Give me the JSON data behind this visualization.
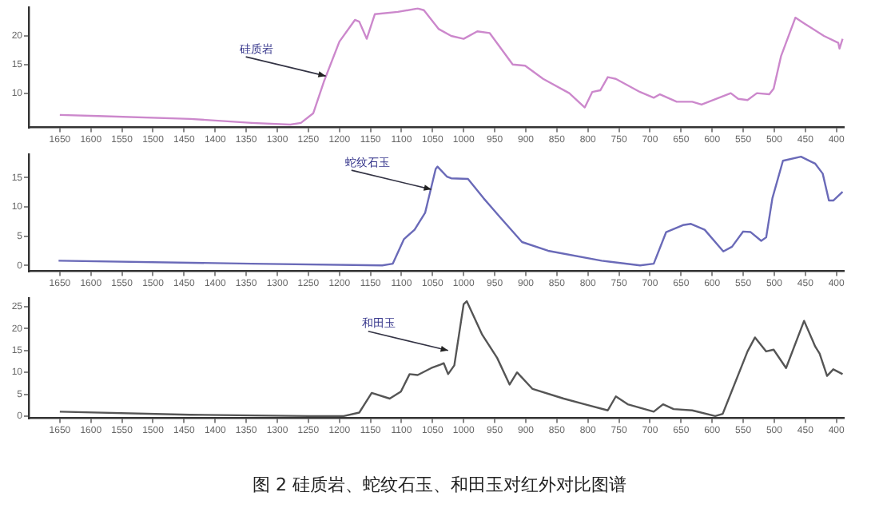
{
  "chart_data": [
    {
      "type": "line",
      "xlim": [
        1700,
        388
      ],
      "xticks": [
        1650,
        1600,
        1550,
        1500,
        1450,
        1400,
        1350,
        1300,
        1250,
        1200,
        1150,
        1100,
        1050,
        1000,
        950,
        900,
        850,
        800,
        750,
        700,
        650,
        600,
        550,
        500,
        450,
        400
      ],
      "ylim": [
        4,
        25
      ],
      "yticks": [
        10,
        15,
        20
      ],
      "grid": false,
      "legend": false,
      "marker": "none",
      "x": [
        1650,
        1588,
        1440,
        1341,
        1279,
        1262,
        1242,
        1225,
        1200,
        1175,
        1168,
        1156,
        1143,
        1106,
        1074,
        1064,
        1040,
        1020,
        1000,
        978,
        958,
        921,
        901,
        872,
        830,
        805,
        793,
        780,
        768,
        755,
        716,
        694,
        684,
        657,
        632,
        617,
        570,
        558,
        543,
        528,
        508,
        501,
        489,
        466,
        452,
        420,
        397,
        395,
        390
      ],
      "series": [
        {
          "color": "#cc88cc",
          "values": [
            6.2,
            6.0,
            5.5,
            4.8,
            4.5,
            4.8,
            6.5,
            12,
            19,
            22.8,
            22.5,
            19.5,
            23.8,
            24.2,
            24.8,
            24.5,
            21.2,
            20,
            19.5,
            20.8,
            20.5,
            15,
            14.8,
            12.5,
            10,
            7.5,
            10.2,
            10.5,
            12.8,
            12.5,
            10.2,
            9.2,
            9.8,
            8.5,
            8.5,
            8,
            10,
            9,
            8.8,
            10,
            9.8,
            10.8,
            16.5,
            23.2,
            22.2,
            20,
            18.8,
            17.8,
            19.5
          ]
        }
      ],
      "annotations": [
        {
          "text": "硅质岩",
          "x": 1222,
          "y": 13
        }
      ]
    },
    {
      "type": "line",
      "xlim": [
        1700,
        388
      ],
      "xticks": [
        1650,
        1600,
        1550,
        1500,
        1450,
        1400,
        1350,
        1300,
        1250,
        1200,
        1150,
        1100,
        1050,
        1000,
        950,
        900,
        850,
        800,
        750,
        700,
        650,
        600,
        550,
        500,
        450,
        400
      ],
      "ylim": [
        -1,
        19
      ],
      "yticks": [
        0,
        5,
        10,
        15
      ],
      "grid": false,
      "legend": false,
      "marker": "none",
      "x": [
        1652,
        1341,
        1131,
        1114,
        1096,
        1079,
        1062,
        1045,
        1042,
        1027,
        1020,
        993,
        968,
        941,
        906,
        864,
        778,
        716,
        694,
        674,
        647,
        634,
        612,
        582,
        568,
        550,
        538,
        521,
        513,
        503,
        486,
        457,
        434,
        422,
        412,
        405,
        390
      ],
      "series": [
        {
          "color": "#6a6ab8",
          "values": [
            0.8,
            0.3,
            0,
            0.3,
            4.5,
            6.1,
            9,
            16.5,
            16.9,
            15.2,
            14.9,
            14.8,
            11.5,
            8.2,
            4,
            2.5,
            0.8,
            0,
            0.3,
            5.7,
            6.9,
            7.1,
            6.1,
            2.4,
            3.2,
            5.8,
            5.7,
            4.2,
            4.8,
            11.5,
            17.9,
            18.6,
            17.4,
            15.7,
            11.1,
            11.1,
            12.6
          ]
        }
      ],
      "annotations": [
        {
          "text": "蛇纹石玉",
          "x": 1052,
          "y": 13
        }
      ]
    },
    {
      "type": "line",
      "xlim": [
        1700,
        388
      ],
      "xticks": [
        1650,
        1600,
        1550,
        1500,
        1450,
        1400,
        1350,
        1300,
        1250,
        1200,
        1150,
        1100,
        1050,
        1000,
        950,
        900,
        850,
        800,
        750,
        700,
        650,
        600,
        550,
        500,
        450,
        400
      ],
      "ylim": [
        -0.5,
        27
      ],
      "yticks": [
        0,
        5,
        10,
        15,
        20,
        25
      ],
      "grid": false,
      "legend": false,
      "marker": "none",
      "x": [
        1650,
        1440,
        1250,
        1193,
        1168,
        1148,
        1119,
        1101,
        1087,
        1074,
        1052,
        1037,
        1032,
        1025,
        1015,
        1000,
        995,
        970,
        946,
        926,
        914,
        889,
        839,
        805,
        768,
        755,
        736,
        694,
        679,
        662,
        632,
        595,
        583,
        543,
        531,
        513,
        501,
        481,
        452,
        434,
        427,
        415,
        405,
        390
      ],
      "series": [
        {
          "color": "#555555",
          "values": [
            1,
            0.3,
            0,
            0,
            0.8,
            5.3,
            4,
            5.6,
            9.6,
            9.4,
            11,
            11.8,
            12.1,
            9.6,
            11.6,
            25.6,
            26.3,
            18.6,
            13.3,
            7.2,
            10,
            6.2,
            4,
            2.7,
            1.3,
            4.5,
            2.7,
            1,
            2.7,
            1.6,
            1.3,
            0,
            0.5,
            14.8,
            18,
            14.8,
            15.2,
            11,
            21.8,
            15.9,
            14.3,
            9.2,
            10.7,
            9.6
          ]
        }
      ],
      "annotations": [
        {
          "text": "和田玉",
          "x": 1025,
          "y": 15
        },
        "图 2 硅质岩、蛇纹石玉、和田玉对红外对比图谱"
      ]
    }
  ]
}
